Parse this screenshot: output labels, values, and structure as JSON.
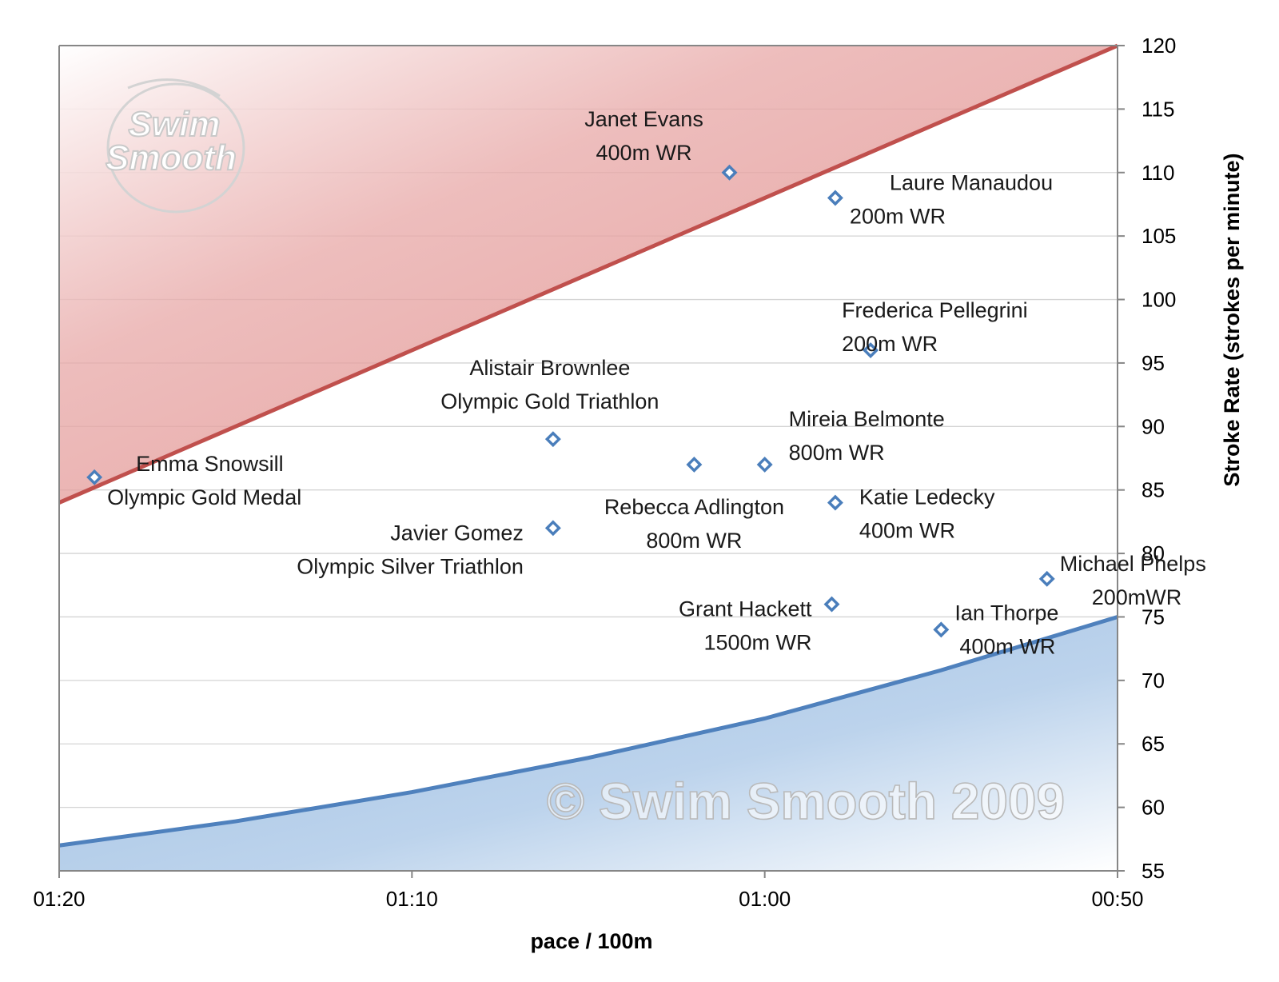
{
  "chart_data": {
    "type": "scatter",
    "title": "",
    "xlabel": "pace / 100m",
    "ylabel": "Stroke Rate (strokes per minute)",
    "x_unit": "seconds per 100m",
    "x_reversed": true,
    "xlim": [
      80,
      50
    ],
    "x_ticks": [
      {
        "value": 80,
        "label": "01:20"
      },
      {
        "value": 70,
        "label": "01:10"
      },
      {
        "value": 60,
        "label": "01:00"
      },
      {
        "value": 50,
        "label": "00:50"
      }
    ],
    "ylim": [
      55,
      120
    ],
    "y_ticks": [
      55,
      60,
      65,
      70,
      75,
      80,
      85,
      90,
      95,
      100,
      105,
      110,
      115,
      120
    ],
    "y_axis_position": "right",
    "grid": "horizontal",
    "legend": "none",
    "colors": {
      "upper_band": "#c0504d",
      "upper_fill": "#e8a9a8",
      "lower_band": "#4f81bd",
      "lower_fill": "#a9c6e6",
      "marker": "#4a7ebb"
    },
    "bands": {
      "upper": {
        "name": "",
        "x": [
          80,
          50
        ],
        "y": [
          84,
          120
        ]
      },
      "lower": {
        "name": "",
        "x": [
          80,
          75,
          70,
          65,
          60,
          55,
          50
        ],
        "y": [
          57,
          58.9,
          61.2,
          63.9,
          67,
          70.8,
          75
        ]
      }
    },
    "points": [
      {
        "x": 79.0,
        "y": 86,
        "label": [
          "Emma Snowsill",
          "Olympic Gold Medal"
        ]
      },
      {
        "x": 66.0,
        "y": 89,
        "label": [
          "Alistair Brownlee",
          "Olympic Gold Triathlon"
        ]
      },
      {
        "x": 66.0,
        "y": 82,
        "label": [
          "Javier Gomez",
          "Olympic Silver Triathlon"
        ]
      },
      {
        "x": 61.0,
        "y": 110,
        "label": [
          "Janet Evans",
          "400m WR"
        ]
      },
      {
        "x": 62.0,
        "y": 87,
        "label": [
          "Rebecca Adlington",
          "800m WR"
        ]
      },
      {
        "x": 60.0,
        "y": 87,
        "label": [
          "Mireia Belmonte",
          "800m WR"
        ]
      },
      {
        "x": 58.0,
        "y": 108,
        "label": [
          "Laure Manaudou",
          "200m WR"
        ]
      },
      {
        "x": 58.0,
        "y": 84,
        "label": [
          "Katie Ledecky",
          "400m WR"
        ]
      },
      {
        "x": 58.1,
        "y": 76,
        "label": [
          "Grant Hackett",
          "1500m WR"
        ]
      },
      {
        "x": 57.0,
        "y": 96,
        "label": [
          "Frederica Pellegrini",
          "200m WR"
        ]
      },
      {
        "x": 55.0,
        "y": 74,
        "label": [
          "Ian Thorpe",
          "400m WR"
        ]
      },
      {
        "x": 52.0,
        "y": 78,
        "label": [
          "Michael Phelps",
          "200mWR"
        ]
      }
    ],
    "watermarks": {
      "copyright": "© Swim Smooth 2009",
      "logo_line1": "Swim",
      "logo_line2": "Smooth"
    }
  }
}
